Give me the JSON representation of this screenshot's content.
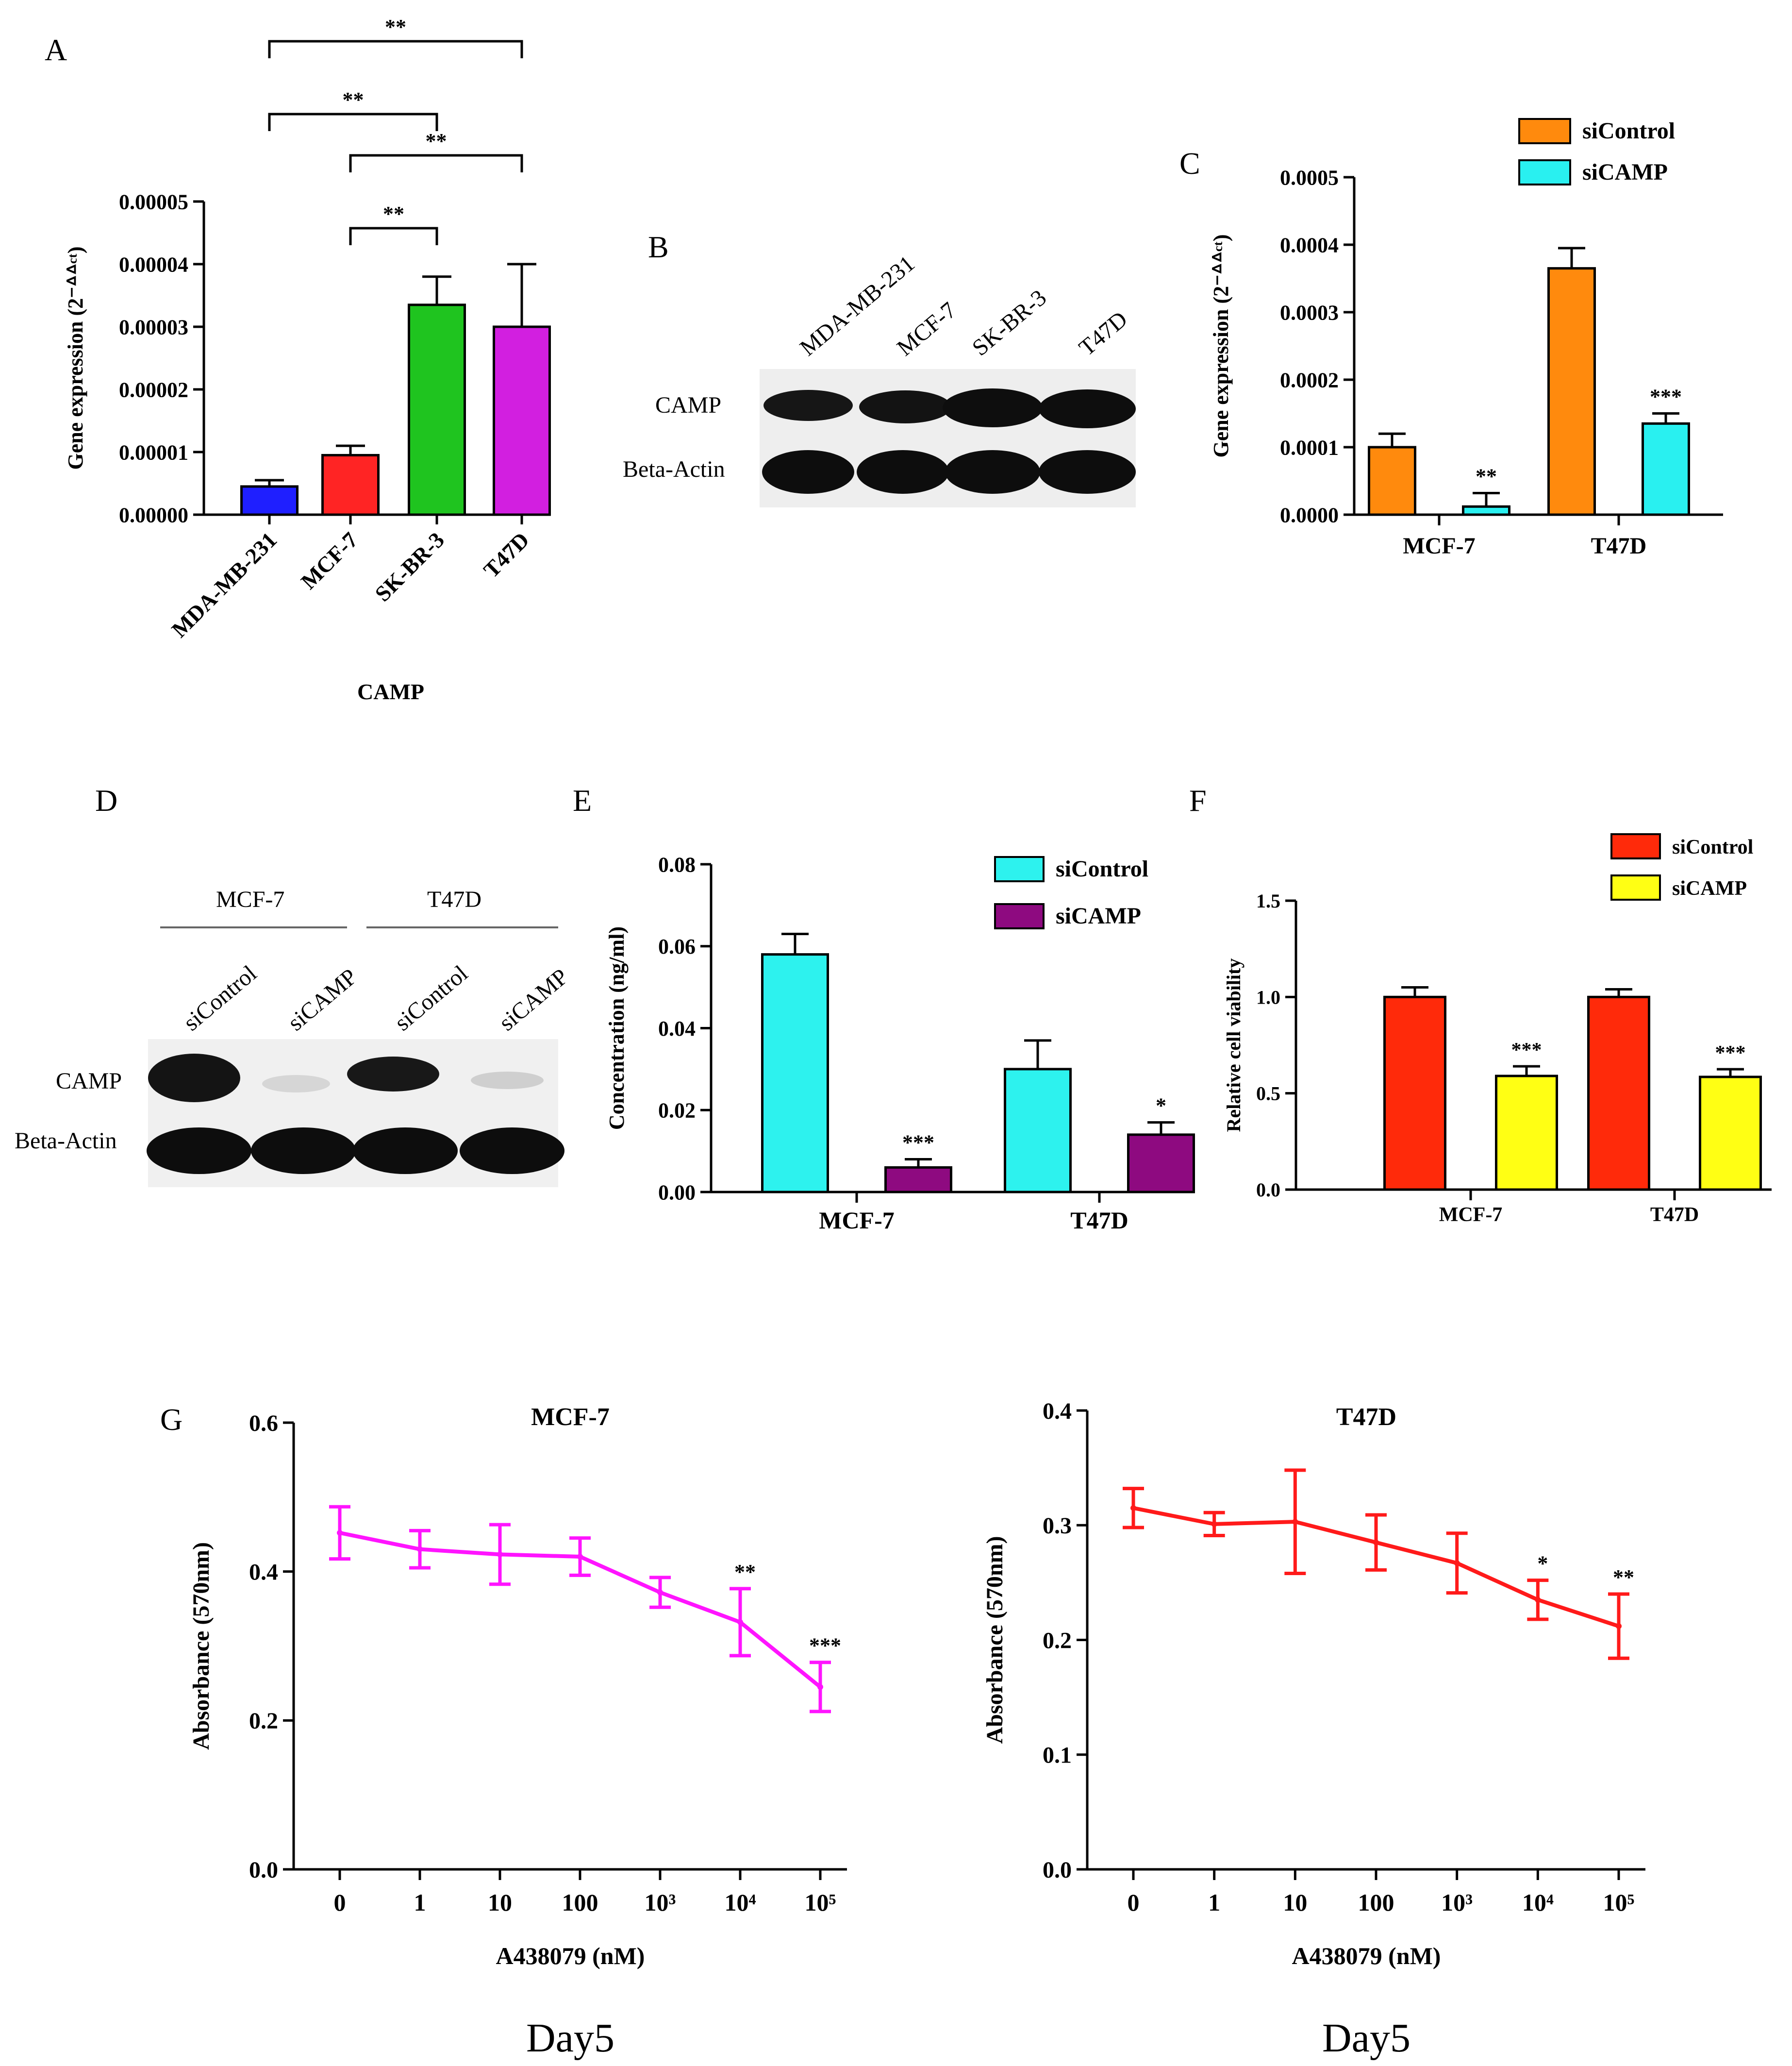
{
  "panels": {
    "A": "A",
    "B": "B",
    "C": "C",
    "D": "D",
    "E": "E",
    "F": "F",
    "G": "G"
  },
  "chart_data": [
    {
      "id": "A",
      "type": "bar",
      "categories": [
        "MDA-MB-231",
        "MCF-7",
        "SK-BR-3",
        "T47D"
      ],
      "values": [
        4.5e-06,
        9.5e-06,
        3.35e-05,
        3e-05
      ],
      "errors": [
        1e-06,
        1.5e-06,
        4.5e-06,
        1e-05
      ],
      "colors": [
        "#1f1fff",
        "#ff2424",
        "#1fc41f",
        "#d21fe0"
      ],
      "ylabel": "Gene expression (2⁻ᐞᐞᶜᵗ)",
      "xlabel": "CAMP",
      "ylim": [
        0,
        5e-05
      ],
      "yticks": [
        "0.00000",
        "0.00001",
        "0.00002",
        "0.00003",
        "0.00004",
        "0.00005"
      ],
      "significance": [
        {
          "from": 0,
          "to": 3,
          "label": "**"
        },
        {
          "from": 0,
          "to": 2,
          "label": "**"
        },
        {
          "from": 1,
          "to": 3,
          "label": "**"
        },
        {
          "from": 1,
          "to": 2,
          "label": "**"
        }
      ]
    },
    {
      "id": "C",
      "type": "bar",
      "categories": [
        "MCF-7",
        "T47D"
      ],
      "series": [
        {
          "name": "siControl",
          "color": "#ff8a0d",
          "values": [
            0.0001,
            0.000365
          ],
          "errors": [
            2e-05,
            3e-05
          ]
        },
        {
          "name": "siCAMP",
          "color": "#29f0f0",
          "values": [
            1.2e-05,
            0.000135
          ],
          "errors": [
            2e-05,
            1.5e-05
          ]
        }
      ],
      "annotations": [
        [
          "",
          "**"
        ],
        [
          "",
          "***"
        ]
      ],
      "ylabel": "Gene expression (2⁻ᐞᐞᶜᵗ)",
      "ylim": [
        0,
        0.0005
      ],
      "yticks": [
        "0.0000",
        "0.0001",
        "0.0002",
        "0.0003",
        "0.0004",
        "0.0005"
      ]
    },
    {
      "id": "E",
      "type": "bar",
      "categories": [
        "MCF-7",
        "T47D"
      ],
      "series": [
        {
          "name": "siControl",
          "color": "#2df2ee",
          "values": [
            0.058,
            0.03
          ],
          "errors": [
            0.005,
            0.007
          ]
        },
        {
          "name": "siCAMP",
          "color": "#8e0a80",
          "values": [
            0.006,
            0.014
          ],
          "errors": [
            0.002,
            0.003
          ]
        }
      ],
      "annotations": [
        [
          "",
          "***"
        ],
        [
          "",
          "*"
        ]
      ],
      "ylabel": "Concentration (ng/ml)",
      "ylim": [
        0,
        0.08
      ],
      "yticks": [
        "0.00",
        "0.02",
        "0.04",
        "0.06",
        "0.08"
      ]
    },
    {
      "id": "F",
      "type": "bar",
      "categories": [
        "MCF-7",
        "T47D"
      ],
      "series": [
        {
          "name": "siControl",
          "color": "#ff2a0a",
          "values": [
            1.0,
            1.0
          ],
          "errors": [
            0.05,
            0.04
          ]
        },
        {
          "name": "siCAMP",
          "color": "#ffff14",
          "values": [
            0.59,
            0.585
          ],
          "errors": [
            0.05,
            0.04
          ]
        }
      ],
      "annotations": [
        [
          "",
          "***"
        ],
        [
          "",
          "***"
        ]
      ],
      "ylabel": "Relative cell viability",
      "ylim": [
        0,
        1.5
      ],
      "yticks": [
        "0.0",
        "0.5",
        "1.0",
        "1.5"
      ]
    },
    {
      "id": "G1",
      "type": "line",
      "title": "MCF-7",
      "x": [
        "0",
        "1",
        "10",
        "100",
        "10³",
        "10⁴",
        "10⁵"
      ],
      "values": [
        0.452,
        0.43,
        0.423,
        0.42,
        0.372,
        0.332,
        0.245
      ],
      "errors": [
        0.035,
        0.025,
        0.04,
        0.025,
        0.02,
        0.045,
        0.033
      ],
      "annotations": [
        "",
        "",
        "",
        "",
        "",
        "**",
        "***"
      ],
      "color": "#ff14ff",
      "ylabel": "Absorbance (570nm)",
      "xlabel": "A438079 (nM)",
      "caption": "Day5",
      "ylim": [
        0,
        0.6
      ],
      "yticks": [
        "0.0",
        "0.2",
        "0.4",
        "0.6"
      ]
    },
    {
      "id": "G2",
      "type": "line",
      "title": "T47D",
      "x": [
        "0",
        "1",
        "10",
        "100",
        "10³",
        "10⁴",
        "10⁵"
      ],
      "values": [
        0.315,
        0.301,
        0.303,
        0.285,
        0.267,
        0.235,
        0.212
      ],
      "errors": [
        0.017,
        0.01,
        0.045,
        0.024,
        0.026,
        0.017,
        0.028
      ],
      "annotations": [
        "",
        "",
        "",
        "",
        "",
        "*",
        "**"
      ],
      "color": "#ff1a1a",
      "ylabel": "Absorbance (570nm)",
      "xlabel": "A438079 (nM)",
      "caption": "Day5",
      "ylim": [
        0,
        0.4
      ],
      "yticks": [
        "0.0",
        "0.1",
        "0.2",
        "0.3",
        "0.4"
      ]
    }
  ],
  "blots": {
    "B": {
      "lanes": [
        "MDA-MB-231",
        "MCF-7",
        "SK-BR-3",
        "T47D"
      ],
      "rows": [
        "CAMP",
        "Beta-Actin"
      ]
    },
    "D": {
      "groups": [
        "MCF-7",
        "T47D"
      ],
      "lanes": [
        "siControl",
        "siCAMP",
        "siControl",
        "siCAMP"
      ],
      "rows": [
        "CAMP",
        "Beta-Actin"
      ]
    }
  }
}
